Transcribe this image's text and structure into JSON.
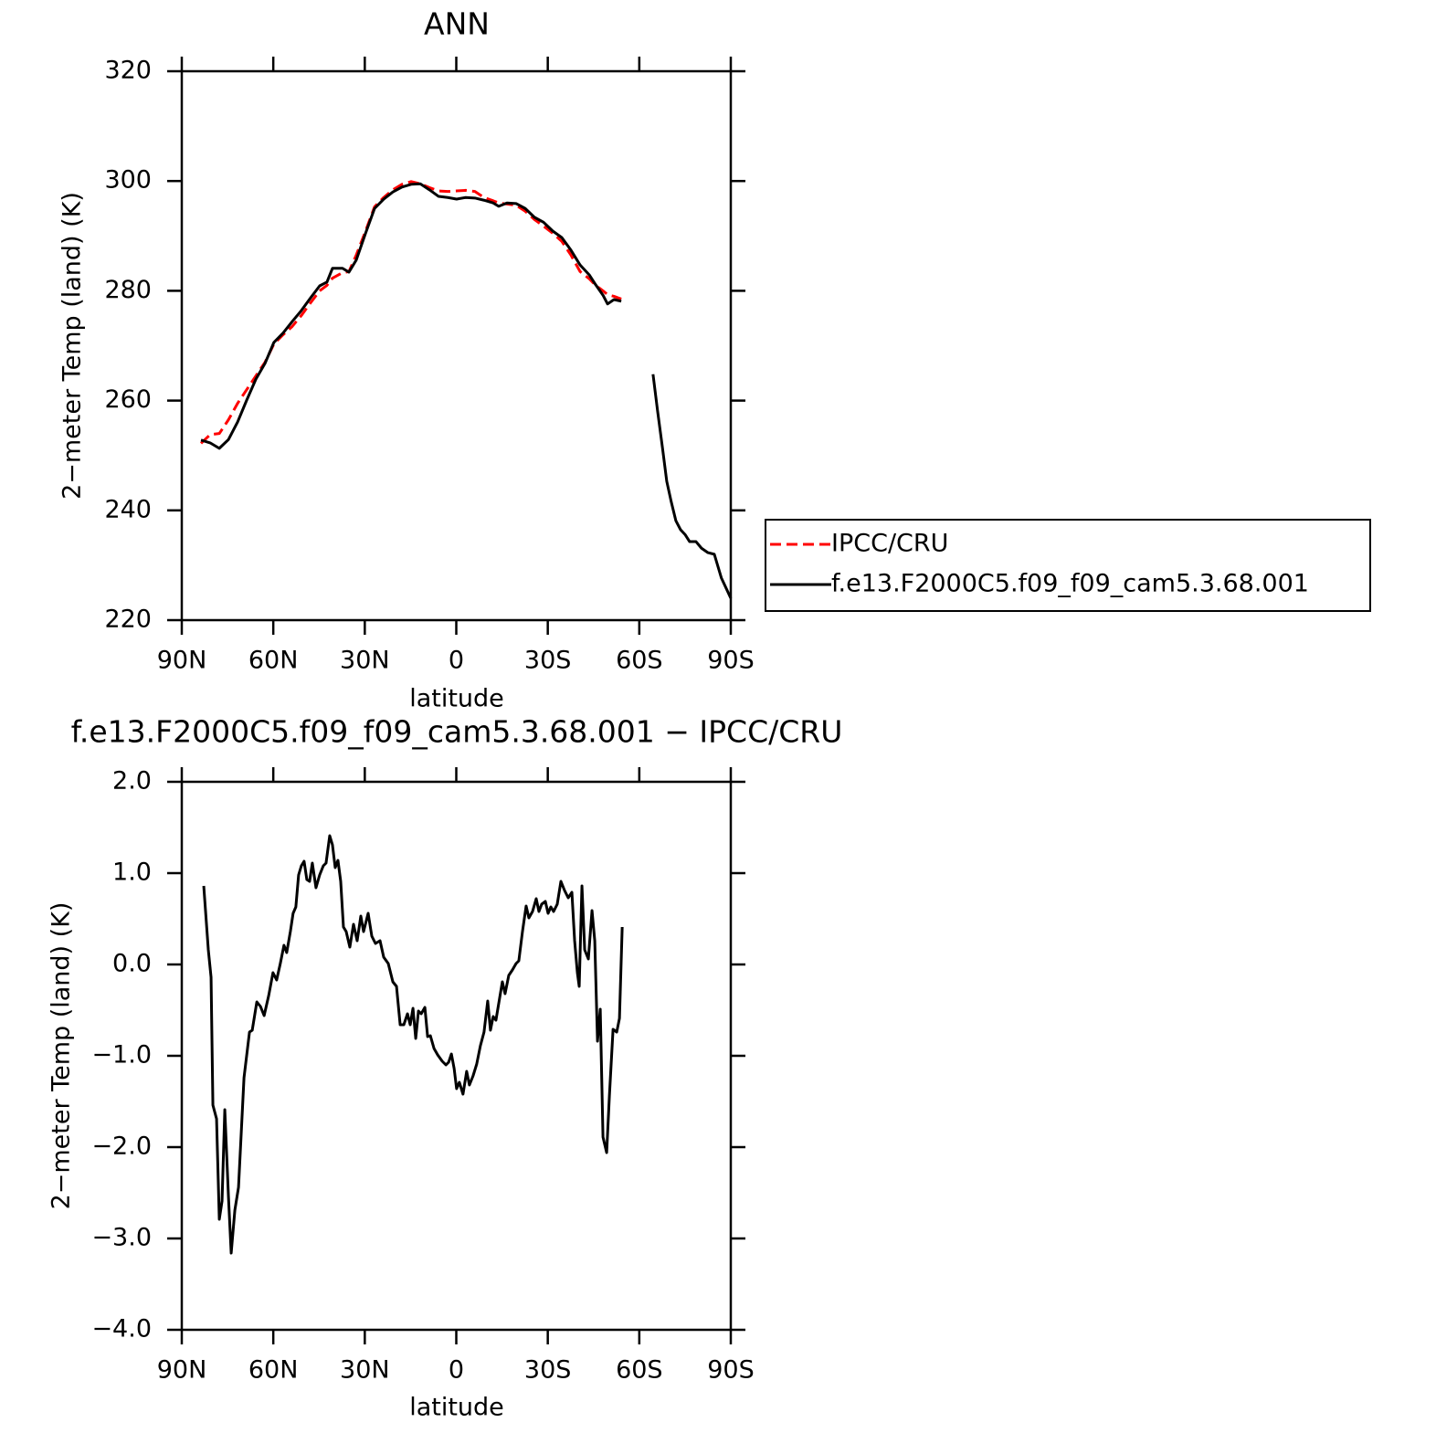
{
  "chart_data": [
    {
      "type": "line",
      "title": "ANN",
      "x_label": "latitude",
      "y_label": "2−meter Temp (land) (K)",
      "x": [
        83.7,
        80.7,
        77.7,
        74.7,
        71.7,
        68.7,
        65.7,
        62.7,
        59.8,
        56.8,
        53.8,
        50.8,
        47.8,
        44.8,
        42.4,
        40.6,
        37.3,
        35.2,
        32.8,
        29.8,
        26.8,
        23.8,
        20.8,
        17.8,
        14.8,
        11.8,
        8.8,
        5.8,
        2.8,
        -0.1,
        -3.1,
        -6.1,
        -9.1,
        -12.1,
        -13.9,
        -16.6,
        -19.6,
        -22.6,
        -25.6,
        -28.6,
        -31.6,
        -34.6,
        -37.6,
        -40.6,
        -43.6,
        -45.7,
        -48.1,
        -49.6,
        -51.7,
        -54.1,
        -60,
        -64.5,
        -66.0,
        -67.6,
        -69.0,
        -70.5,
        -72.0,
        -73.5,
        -75.0,
        -76.5,
        -78.6,
        -80.4,
        -82.5,
        -84.6,
        -86.9,
        -90
      ],
      "series": [
        {
          "name": "IPCC/CRU",
          "color": "#ff0000",
          "style": "dashed",
          "values": [
            252.2,
            253.8,
            254.0,
            256.5,
            259.5,
            262.0,
            264.5,
            267.0,
            270.3,
            272.0,
            273.5,
            275.5,
            277.8,
            280.0,
            281.0,
            282.3,
            283.3,
            283.5,
            286.5,
            290.8,
            295.3,
            297.0,
            298.4,
            299.4,
            299.9,
            299.5,
            298.8,
            298.2,
            298.1,
            298.2,
            298.3,
            298.1,
            297.0,
            296.4,
            296.0,
            295.8,
            295.6,
            294.5,
            293.0,
            291.8,
            290.5,
            289.0,
            286.5,
            283.5,
            282.2,
            281.0,
            280.0,
            279.3,
            279.0,
            278.5,
            null,
            null,
            null,
            null,
            null,
            null,
            null,
            null,
            null,
            null,
            null,
            null,
            null,
            null,
            null,
            null
          ]
        },
        {
          "name": "f.e13.F2000C5.f09_f09_cam5.3.68.001",
          "color": "#000000",
          "style": "solid",
          "values": [
            252.8,
            252.3,
            251.3,
            252.9,
            256.1,
            260.1,
            263.9,
            266.8,
            270.6,
            272.3,
            274.4,
            276.4,
            278.7,
            280.9,
            281.6,
            284.1,
            284.1,
            283.4,
            285.6,
            290.4,
            295.0,
            296.7,
            298.0,
            298.9,
            299.4,
            299.5,
            298.4,
            297.2,
            297.0,
            296.7,
            297.0,
            296.9,
            296.5,
            296.0,
            295.4,
            296.0,
            295.9,
            295.0,
            293.4,
            292.5,
            290.9,
            289.7,
            287.4,
            284.7,
            282.9,
            281.1,
            279.2,
            277.6,
            278.4,
            278.1,
            null,
            264.8,
            258.1,
            251.4,
            245.3,
            241.5,
            238.1,
            236.5,
            235.6,
            234.3,
            234.3,
            233.1,
            232.3,
            232.0,
            227.7,
            224.0
          ]
        }
      ],
      "xlim": [
        90,
        -90
      ],
      "xticks": [
        {
          "value": 90,
          "label": "90N"
        },
        {
          "value": 60,
          "label": "60N"
        },
        {
          "value": 30,
          "label": "30N"
        },
        0,
        {
          "value": -30,
          "label": "30S"
        },
        {
          "value": -60,
          "label": "60S"
        },
        {
          "value": -90,
          "label": "90S"
        }
      ],
      "ylim": [
        220,
        320
      ],
      "yticks": [
        220,
        240,
        260,
        280,
        300,
        320
      ],
      "legend": "right"
    },
    {
      "type": "line",
      "title": "f.e13.F2000C5.f09_f09_cam5.3.68.001 − IPCC/CRU",
      "x_label": "latitude",
      "y_label": "2−meter Temp (land) (K)",
      "x": [
        82.8,
        81.3,
        80.4,
        79.8,
        78.6,
        77.7,
        76.8,
        75.9,
        74.7,
        73.8,
        72.6,
        71.4,
        69.6,
        67.8,
        66.9,
        65.4,
        64.2,
        63.0,
        61.5,
        60.1,
        58.9,
        57.7,
        56.5,
        55.6,
        54.4,
        53.5,
        52.6,
        51.7,
        50.8,
        49.9,
        49.0,
        48.1,
        47.2,
        46.0,
        44.8,
        43.6,
        42.7,
        41.5,
        40.6,
        39.7,
        38.8,
        37.9,
        37.0,
        36.1,
        34.9,
        33.7,
        32.5,
        31.3,
        30.4,
        28.9,
        27.7,
        26.5,
        25.0,
        23.8,
        22.3,
        20.8,
        19.6,
        18.4,
        17.2,
        16.0,
        15.1,
        14.2,
        13.3,
        12.4,
        11.5,
        10.3,
        9.4,
        8.5,
        7.3,
        6.1,
        4.6,
        3.4,
        2.5,
        1.6,
        0.7,
        -0.1,
        -1.0,
        -2.2,
        -3.4,
        -4.3,
        -5.5,
        -6.7,
        -7.9,
        -9.1,
        -10.3,
        -11.2,
        -12.1,
        -13.0,
        -14.2,
        -15.1,
        -16.0,
        -17.2,
        -18.4,
        -19.6,
        -20.5,
        -21.7,
        -22.9,
        -23.8,
        -25.0,
        -26.2,
        -27.1,
        -28.0,
        -29.2,
        -30.1,
        -31.0,
        -31.9,
        -33.1,
        -34.3,
        -35.5,
        -36.7,
        -37.9,
        -38.8,
        -39.7,
        -40.3,
        -41.2,
        -42.1,
        -43.3,
        -44.5,
        -45.4,
        -46.3,
        -47.2,
        -48.1,
        -49.3,
        -50.2,
        -51.4,
        -52.6,
        -53.5,
        -54.4
      ],
      "series": [
        {
          "color": "#000000",
          "style": "solid",
          "values": [
            0.86,
            0.16,
            -0.14,
            -1.54,
            -1.69,
            -2.79,
            -2.59,
            -1.59,
            -2.54,
            -3.16,
            -2.69,
            -2.44,
            -1.24,
            -0.74,
            -0.72,
            -0.41,
            -0.46,
            -0.56,
            -0.34,
            -0.09,
            -0.17,
            0.01,
            0.21,
            0.13,
            0.36,
            0.56,
            0.63,
            0.98,
            1.08,
            1.13,
            0.93,
            0.91,
            1.11,
            0.84,
            0.98,
            1.08,
            1.11,
            1.41,
            1.31,
            1.06,
            1.14,
            0.91,
            0.41,
            0.36,
            0.19,
            0.44,
            0.26,
            0.53,
            0.36,
            0.56,
            0.31,
            0.23,
            0.26,
            0.08,
            0.01,
            -0.19,
            -0.24,
            -0.66,
            -0.66,
            -0.54,
            -0.66,
            -0.48,
            -0.81,
            -0.51,
            -0.54,
            -0.47,
            -0.79,
            -0.78,
            -0.92,
            -0.99,
            -1.06,
            -1.1,
            -1.07,
            -0.98,
            -1.14,
            -1.36,
            -1.29,
            -1.42,
            -1.17,
            -1.32,
            -1.22,
            -1.09,
            -0.89,
            -0.74,
            -0.4,
            -0.72,
            -0.57,
            -0.61,
            -0.37,
            -0.19,
            -0.32,
            -0.12,
            -0.06,
            0.01,
            0.04,
            0.36,
            0.64,
            0.51,
            0.58,
            0.72,
            0.58,
            0.66,
            0.69,
            0.56,
            0.63,
            0.58,
            0.66,
            0.91,
            0.81,
            0.73,
            0.79,
            0.26,
            -0.09,
            -0.24,
            0.86,
            0.16,
            0.06,
            0.59,
            0.26,
            -0.84,
            -0.49,
            -1.89,
            -2.06,
            -1.44,
            -0.71,
            -0.74,
            -0.59,
            0.41
          ]
        }
      ],
      "xlim": [
        90,
        -90
      ],
      "xticks": [
        {
          "value": 90,
          "label": "90N"
        },
        {
          "value": 60,
          "label": "60N"
        },
        {
          "value": 30,
          "label": "30N"
        },
        0,
        {
          "value": -30,
          "label": "30S"
        },
        {
          "value": -60,
          "label": "60S"
        },
        {
          "value": -90,
          "label": "90S"
        }
      ],
      "ylim": [
        -4,
        2
      ],
      "yticks": [
        {
          "value": -4,
          "label": "−4.0"
        },
        {
          "value": -3,
          "label": "−3.0"
        },
        {
          "value": -2,
          "label": "−2.0"
        },
        {
          "value": -1,
          "label": "−1.0"
        },
        {
          "value": 0,
          "label": "0.0"
        },
        {
          "value": 1,
          "label": "1.0"
        },
        {
          "value": 2,
          "label": "2.0"
        }
      ]
    }
  ]
}
